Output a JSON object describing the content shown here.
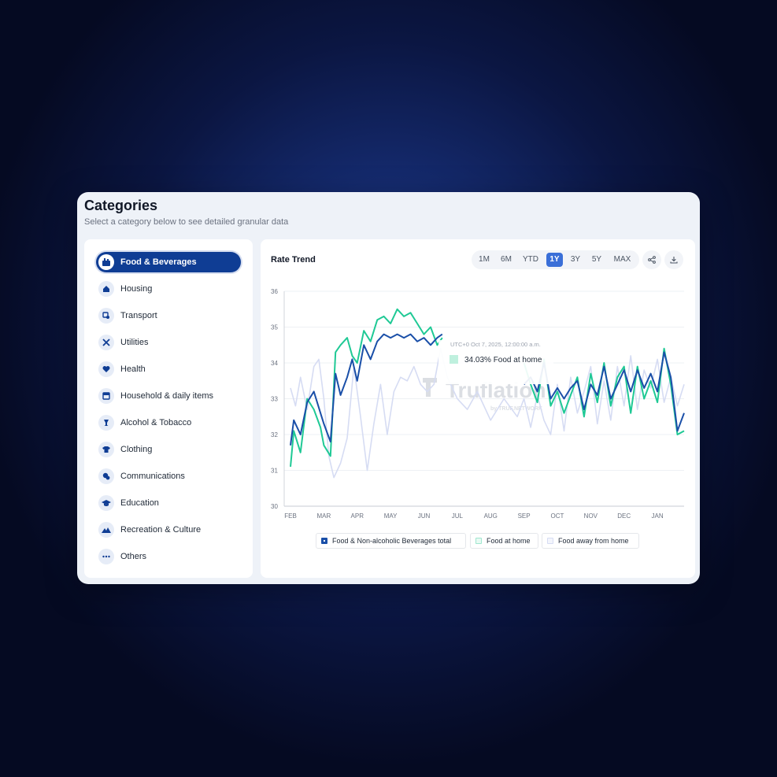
{
  "header": {
    "title": "Categories",
    "subtitle": "Select a category below to see detailed granular data"
  },
  "sidebar": {
    "items": [
      {
        "label": "Food & Beverages",
        "icon": "food-icon",
        "active": true
      },
      {
        "label": "Housing",
        "icon": "home-icon",
        "active": false
      },
      {
        "label": "Transport",
        "icon": "transport-icon",
        "active": false
      },
      {
        "label": "Utilities",
        "icon": "tools-icon",
        "active": false
      },
      {
        "label": "Health",
        "icon": "heart-icon",
        "active": false
      },
      {
        "label": "Household & daily items",
        "icon": "household-icon",
        "active": false
      },
      {
        "label": "Alcohol & Tobacco",
        "icon": "glass-icon",
        "active": false
      },
      {
        "label": "Clothing",
        "icon": "shirt-icon",
        "active": false
      },
      {
        "label": "Communications",
        "icon": "chat-icon",
        "active": false
      },
      {
        "label": "Education",
        "icon": "graduation-cap-icon",
        "active": false
      },
      {
        "label": "Recreation & Culture",
        "icon": "mountain-icon",
        "active": false
      },
      {
        "label": "Others",
        "icon": "more-dots-icon",
        "active": false
      }
    ]
  },
  "main": {
    "title": "Rate Trend",
    "ranges": [
      "1M",
      "6M",
      "YTD",
      "1Y",
      "3Y",
      "5Y",
      "MAX"
    ],
    "active_range": "1Y",
    "actions": [
      "share-icon",
      "download-icon"
    ]
  },
  "tooltip": {
    "timestamp": "UTC+0 Oct 7, 2025, 12:00:00 a.m.",
    "value_text": "34.03% Food at home"
  },
  "watermark": {
    "brand": "Truflation",
    "sub": "by TRUF.NETWORK"
  },
  "colors": {
    "accent": "#0f3d94",
    "series_total": "#1a4fa8",
    "series_home": "#1fc995",
    "series_away": "#d6dcf3",
    "active_range": "#3a6fd8"
  },
  "chart_data": {
    "type": "line",
    "title": "",
    "xlabel": "",
    "ylabel": "",
    "ylim": [
      30,
      36
    ],
    "y_ticks": [
      30,
      31,
      32,
      33,
      34,
      35,
      36
    ],
    "x_ticks": [
      "FEB",
      "MAR",
      "APR",
      "MAY",
      "JUN",
      "JUL",
      "AUG",
      "SEP",
      "OCT",
      "NOV",
      "DEC",
      "JAN"
    ],
    "grid": true,
    "legend_position": "bottom",
    "series": [
      {
        "name": "Food & Non-alcoholic Beverages total",
        "x": [
          0,
          0.1,
          0.3,
          0.5,
          0.7,
          0.9,
          1.0,
          1.2,
          1.35,
          1.5,
          1.7,
          1.85,
          2.0,
          2.2,
          2.4,
          2.6,
          2.8,
          3.0,
          3.2,
          3.4,
          3.6,
          3.8,
          4.0,
          4.2,
          4.4,
          4.55,
          7.0,
          7.2,
          7.4,
          7.6,
          7.8,
          8.0,
          8.2,
          8.4,
          8.6,
          8.8,
          9.0,
          9.2,
          9.4,
          9.6,
          9.8,
          10.0,
          10.2,
          10.4,
          10.6,
          10.8,
          11.0,
          11.2,
          11.4,
          11.6,
          11.8
        ],
        "y": [
          31.7,
          32.4,
          32.0,
          32.9,
          33.2,
          32.6,
          32.3,
          31.8,
          33.7,
          33.1,
          33.6,
          34.1,
          33.5,
          34.5,
          34.1,
          34.6,
          34.8,
          34.7,
          34.8,
          34.7,
          34.8,
          34.6,
          34.7,
          34.5,
          34.7,
          34.8,
          33.4,
          33.6,
          33.2,
          34.0,
          33.0,
          33.3,
          33.0,
          33.3,
          33.5,
          32.7,
          33.4,
          33.1,
          33.9,
          33.0,
          33.4,
          33.8,
          33.2,
          33.8,
          33.3,
          33.7,
          33.2,
          34.3,
          33.6,
          32.1,
          32.6
        ]
      },
      {
        "name": "Food at home",
        "x": [
          0,
          0.1,
          0.3,
          0.5,
          0.7,
          0.9,
          1.0,
          1.2,
          1.35,
          1.5,
          1.7,
          1.85,
          2.0,
          2.2,
          2.4,
          2.6,
          2.8,
          3.0,
          3.2,
          3.4,
          3.6,
          3.8,
          4.0,
          4.2,
          4.4,
          4.55,
          7.0,
          7.2,
          7.4,
          7.6,
          7.8,
          8.0,
          8.2,
          8.4,
          8.6,
          8.8,
          9.0,
          9.2,
          9.4,
          9.6,
          9.8,
          10.0,
          10.2,
          10.4,
          10.6,
          10.8,
          11.0,
          11.2,
          11.4,
          11.6,
          11.8
        ],
        "y": [
          31.1,
          32.1,
          31.5,
          33.0,
          32.7,
          32.2,
          31.7,
          31.4,
          34.3,
          34.5,
          34.7,
          34.2,
          34.0,
          34.9,
          34.6,
          35.2,
          35.3,
          35.1,
          35.5,
          35.3,
          35.4,
          35.1,
          34.8,
          35.0,
          34.5,
          34.7,
          34.0,
          33.4,
          32.9,
          34.1,
          32.8,
          33.2,
          32.6,
          33.1,
          33.6,
          32.5,
          33.7,
          32.9,
          34.0,
          32.8,
          33.6,
          33.9,
          32.6,
          33.9,
          33.0,
          33.5,
          32.9,
          34.4,
          33.4,
          32.0,
          32.1
        ]
      },
      {
        "name": "Food away from home",
        "x": [
          0,
          0.15,
          0.3,
          0.5,
          0.7,
          0.85,
          1.0,
          1.15,
          1.3,
          1.5,
          1.7,
          1.9,
          2.1,
          2.3,
          2.5,
          2.7,
          2.9,
          3.1,
          3.3,
          3.5,
          3.7,
          3.9,
          4.1,
          4.3,
          4.5,
          4.7,
          5.0,
          5.3,
          5.6,
          6.0,
          6.4,
          6.8,
          7.0,
          7.2,
          7.4,
          7.6,
          7.8,
          8.0,
          8.2,
          8.4,
          8.6,
          8.8,
          9.0,
          9.2,
          9.4,
          9.6,
          9.8,
          10.0,
          10.2,
          10.4,
          10.6,
          10.8,
          11.0,
          11.2,
          11.4,
          11.6,
          11.8
        ],
        "y": [
          33.3,
          32.8,
          33.6,
          32.7,
          33.9,
          34.1,
          33.0,
          31.4,
          30.8,
          31.2,
          31.9,
          33.9,
          32.5,
          31.0,
          32.3,
          33.4,
          32.0,
          33.2,
          33.6,
          33.5,
          33.9,
          33.4,
          33.2,
          33.4,
          34.4,
          33.6,
          33.0,
          32.7,
          33.2,
          32.4,
          33.0,
          32.5,
          33.0,
          32.2,
          33.1,
          32.4,
          32.0,
          33.4,
          32.1,
          33.6,
          32.6,
          33.2,
          33.9,
          32.3,
          33.5,
          32.4,
          33.9,
          32.8,
          34.2,
          32.7,
          33.8,
          33.3,
          34.1,
          32.9,
          33.6,
          32.8,
          33.4
        ]
      }
    ]
  }
}
